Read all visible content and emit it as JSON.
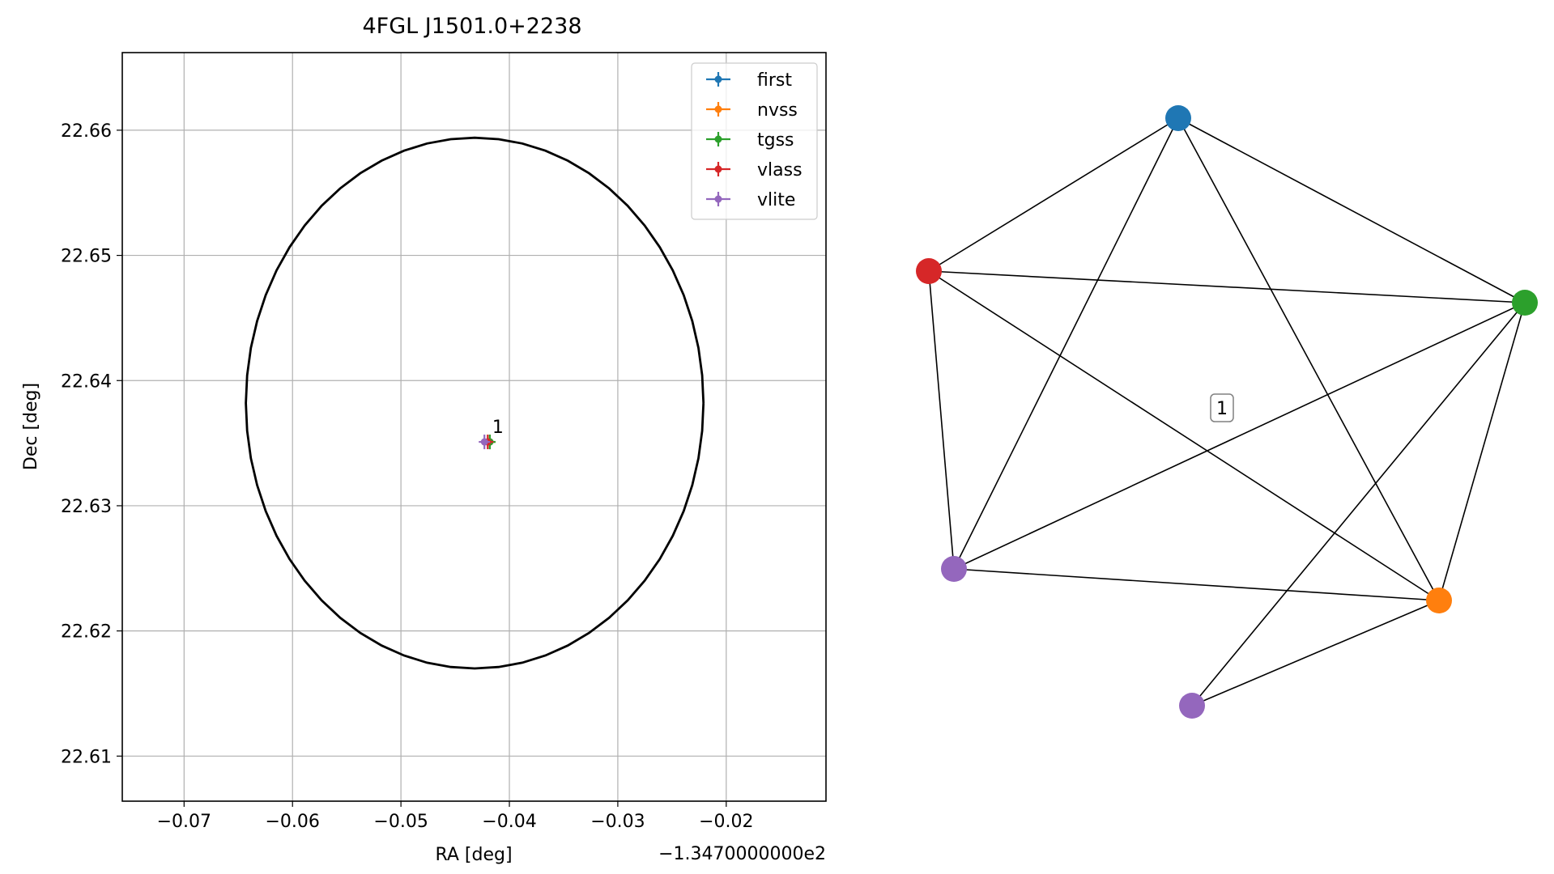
{
  "chart_data": [
    {
      "type": "scatter",
      "title": "4FGL J1501.0+2238",
      "xlabel": "RA [deg]",
      "ylabel": "Dec [deg]",
      "x_offset_label": "−1.3470000000e2",
      "xlim": [
        -0.0757,
        -0.0108
      ],
      "ylim": [
        22.6064,
        22.6662
      ],
      "xticks": [
        -0.07,
        -0.06,
        -0.05,
        -0.04,
        -0.03,
        -0.02
      ],
      "xtick_labels": [
        "−0.07",
        "−0.06",
        "−0.05",
        "−0.04",
        "−0.03",
        "−0.02"
      ],
      "yticks": [
        22.61,
        22.62,
        22.63,
        22.64,
        22.65,
        22.66
      ],
      "ytick_labels": [
        "22.61",
        "22.62",
        "22.63",
        "22.64",
        "22.65",
        "22.66"
      ],
      "grid": true,
      "legend_placement": "upper right",
      "series": [
        {
          "name": "first",
          "color": "#1f77b4",
          "x": [
            -0.0418
          ],
          "y": [
            22.6351
          ]
        },
        {
          "name": "nvss",
          "color": "#ff7f0e",
          "x": [
            -0.0418
          ],
          "y": [
            22.6351
          ]
        },
        {
          "name": "tgss",
          "color": "#2ca02c",
          "x": [
            -0.0418
          ],
          "y": [
            22.6351
          ]
        },
        {
          "name": "vlass",
          "color": "#d62728",
          "x": [
            -0.042
          ],
          "y": [
            22.6351
          ]
        },
        {
          "name": "vlite",
          "color": "#9467bd",
          "x": [
            -0.0423
          ],
          "y": [
            22.6351
          ]
        }
      ],
      "error_circle": {
        "center_x": -0.0432,
        "center_y": 22.6382,
        "radius_ra": 0.0211,
        "radius_dec": 0.0212,
        "color": "#000000"
      },
      "annotations": [
        {
          "text": "1",
          "x": -0.0418,
          "y": 22.6355
        }
      ]
    },
    {
      "type": "network",
      "label": "1",
      "nodes": [
        {
          "id": "first",
          "color": "#1f77b4"
        },
        {
          "id": "vlass",
          "color": "#d62728"
        },
        {
          "id": "tgss",
          "color": "#2ca02c"
        },
        {
          "id": "vlite_1",
          "color": "#9467bd"
        },
        {
          "id": "nvss",
          "color": "#ff7f0e"
        },
        {
          "id": "vlite_2",
          "color": "#9467bd"
        }
      ],
      "edges": [
        [
          "first",
          "vlass"
        ],
        [
          "first",
          "tgss"
        ],
        [
          "first",
          "vlite_1"
        ],
        [
          "first",
          "nvss"
        ],
        [
          "vlass",
          "tgss"
        ],
        [
          "vlass",
          "vlite_1"
        ],
        [
          "vlass",
          "nvss"
        ],
        [
          "tgss",
          "vlite_1"
        ],
        [
          "tgss",
          "nvss"
        ],
        [
          "tgss",
          "vlite_2"
        ],
        [
          "vlite_1",
          "nvss"
        ],
        [
          "nvss",
          "vlite_2"
        ]
      ]
    }
  ]
}
